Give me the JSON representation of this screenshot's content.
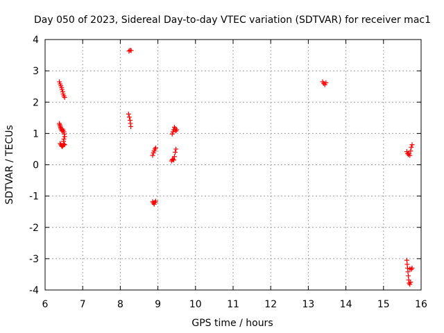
{
  "chart_data": {
    "type": "scatter",
    "title": "Day 050 of 2023, Sidereal Day-to-day VTEC variation (SDTVAR) for receiver mac1",
    "xlabel": "GPS time / hours",
    "ylabel": "SDTVAR / TECUs",
    "xlim": [
      6,
      16
    ],
    "ylim": [
      -4,
      4
    ],
    "x_ticks": [
      "6",
      "7",
      "8",
      "9",
      "10",
      "11",
      "12",
      "13",
      "14",
      "15",
      "16"
    ],
    "y_ticks": [
      "4",
      "3",
      "2",
      "1",
      "0",
      "-1",
      "-2",
      "-3",
      "-4"
    ],
    "grid": true,
    "marker": "plus",
    "color": "#ff0000",
    "points": [
      [
        6.38,
        2.65
      ],
      [
        6.4,
        2.58
      ],
      [
        6.42,
        2.52
      ],
      [
        6.44,
        2.46
      ],
      [
        6.45,
        2.4
      ],
      [
        6.47,
        2.33
      ],
      [
        6.48,
        2.26
      ],
      [
        6.5,
        2.2
      ],
      [
        6.52,
        2.15
      ],
      [
        6.38,
        1.32
      ],
      [
        6.39,
        1.28
      ],
      [
        6.4,
        1.24
      ],
      [
        6.41,
        1.2
      ],
      [
        6.42,
        1.16
      ],
      [
        6.43,
        1.12
      ],
      [
        6.45,
        1.08
      ],
      [
        6.46,
        1.14
      ],
      [
        6.48,
        1.1
      ],
      [
        6.5,
        1.05
      ],
      [
        6.51,
        0.98
      ],
      [
        6.52,
        0.9
      ],
      [
        6.5,
        0.82
      ],
      [
        6.49,
        0.75
      ],
      [
        6.4,
        0.68
      ],
      [
        6.42,
        0.64
      ],
      [
        6.44,
        0.6
      ],
      [
        6.46,
        0.58
      ],
      [
        6.48,
        0.62
      ],
      [
        6.5,
        0.66
      ],
      [
        6.52,
        0.64
      ],
      [
        8.22,
        1.62
      ],
      [
        8.24,
        1.52
      ],
      [
        8.26,
        1.42
      ],
      [
        8.27,
        1.32
      ],
      [
        8.28,
        1.22
      ],
      [
        8.23,
        3.63
      ],
      [
        8.26,
        3.66
      ],
      [
        8.29,
        3.65
      ],
      [
        8.86,
        0.3
      ],
      [
        8.88,
        0.38
      ],
      [
        8.9,
        0.44
      ],
      [
        8.92,
        0.5
      ],
      [
        8.94,
        0.54
      ],
      [
        8.86,
        -1.18
      ],
      [
        8.88,
        -1.22
      ],
      [
        8.9,
        -1.26
      ],
      [
        8.92,
        -1.2
      ],
      [
        8.94,
        -1.16
      ],
      [
        9.36,
        0.12
      ],
      [
        9.38,
        0.16
      ],
      [
        9.4,
        0.18
      ],
      [
        9.42,
        0.15
      ],
      [
        9.44,
        0.26
      ],
      [
        9.46,
        0.4
      ],
      [
        9.48,
        0.5
      ],
      [
        9.38,
        0.98
      ],
      [
        9.4,
        1.05
      ],
      [
        9.42,
        1.12
      ],
      [
        9.44,
        1.2
      ],
      [
        9.46,
        1.15
      ],
      [
        9.48,
        1.08
      ],
      [
        9.5,
        1.12
      ],
      [
        13.38,
        2.65
      ],
      [
        13.41,
        2.6
      ],
      [
        13.44,
        2.56
      ],
      [
        13.47,
        2.62
      ],
      [
        15.62,
        0.42
      ],
      [
        15.64,
        0.36
      ],
      [
        15.66,
        0.32
      ],
      [
        15.68,
        0.36
      ],
      [
        15.7,
        0.3
      ],
      [
        15.72,
        0.44
      ],
      [
        15.74,
        0.56
      ],
      [
        15.76,
        0.64
      ],
      [
        15.62,
        -3.05
      ],
      [
        15.63,
        -3.18
      ],
      [
        15.64,
        -3.3
      ],
      [
        15.65,
        -3.42
      ],
      [
        15.66,
        -3.55
      ],
      [
        15.67,
        -3.68
      ],
      [
        15.68,
        -3.78
      ],
      [
        15.7,
        -3.82
      ],
      [
        15.72,
        -3.75
      ],
      [
        15.7,
        -3.32
      ],
      [
        15.74,
        -3.34
      ],
      [
        15.76,
        -3.3
      ]
    ]
  }
}
